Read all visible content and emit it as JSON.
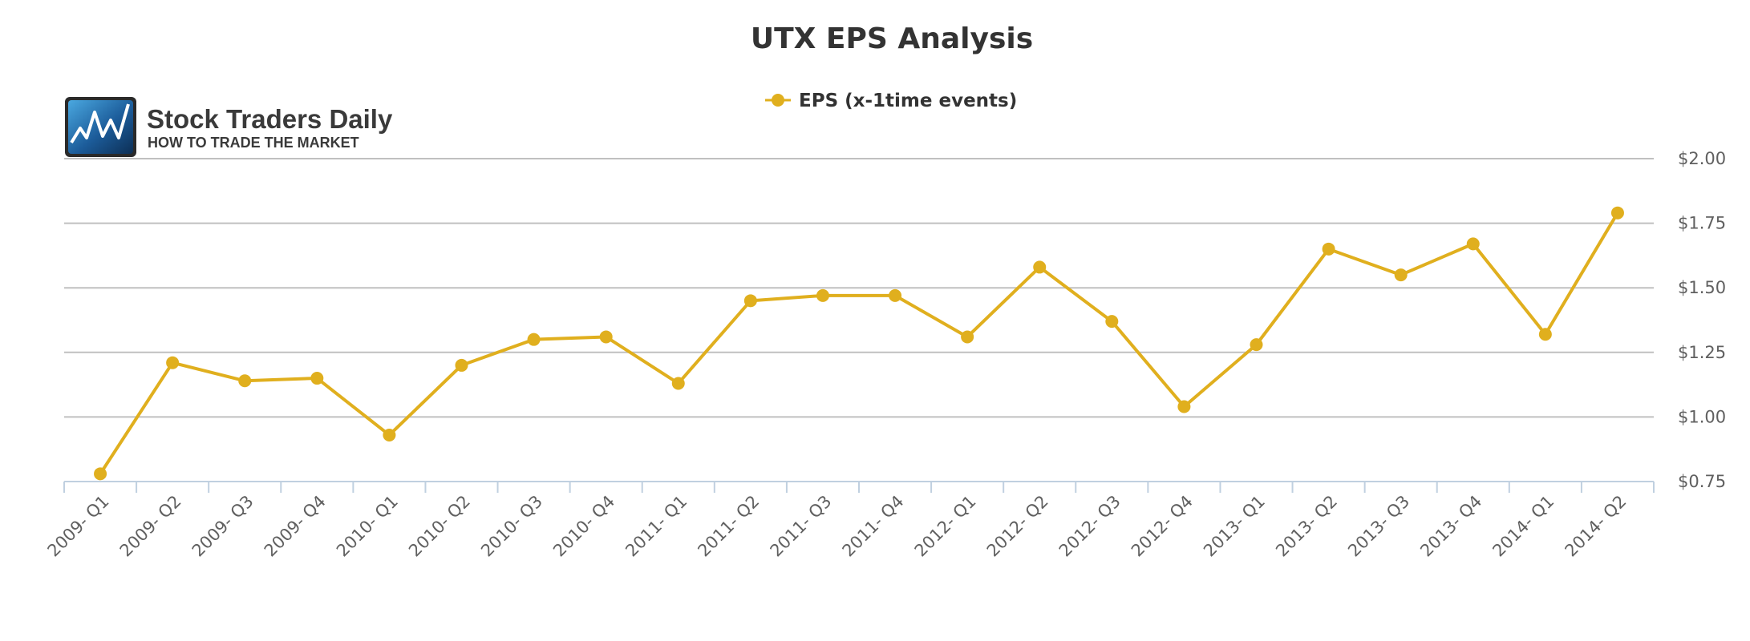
{
  "logo": {
    "name": "Stock Traders Daily",
    "tagline": "HOW TO TRADE THE MARKET"
  },
  "chart_data": {
    "type": "line",
    "title": "UTX EPS Analysis",
    "xlabel": "",
    "ylabel": "",
    "categories": [
      "2009- Q1",
      "2009- Q2",
      "2009- Q3",
      "2009- Q4",
      "2010- Q1",
      "2010- Q2",
      "2010- Q3",
      "2010- Q4",
      "2011- Q1",
      "2011- Q2",
      "2011- Q3",
      "2011- Q4",
      "2012- Q1",
      "2012- Q2",
      "2012- Q3",
      "2012- Q4",
      "2013- Q1",
      "2013- Q2",
      "2013- Q3",
      "2013- Q4",
      "2014- Q1",
      "2014- Q2"
    ],
    "series": [
      {
        "name": "EPS (x-1time events)",
        "color": "#e0af1e",
        "values": [
          0.78,
          1.21,
          1.14,
          1.15,
          0.93,
          1.2,
          1.3,
          1.31,
          1.13,
          1.45,
          1.47,
          1.47,
          1.31,
          1.58,
          1.37,
          1.04,
          1.28,
          1.65,
          1.55,
          1.67,
          1.32,
          1.79
        ]
      }
    ],
    "ylim": [
      0.75,
      2.0
    ],
    "yticks": [
      0.75,
      1.0,
      1.25,
      1.5,
      1.75,
      2.0
    ],
    "ytick_labels": [
      "$0.75",
      "$1.00",
      "$1.25",
      "$1.50",
      "$1.75",
      "$2.00"
    ],
    "y_axis_side": "right",
    "grid": true,
    "legend_position": "top-center"
  }
}
